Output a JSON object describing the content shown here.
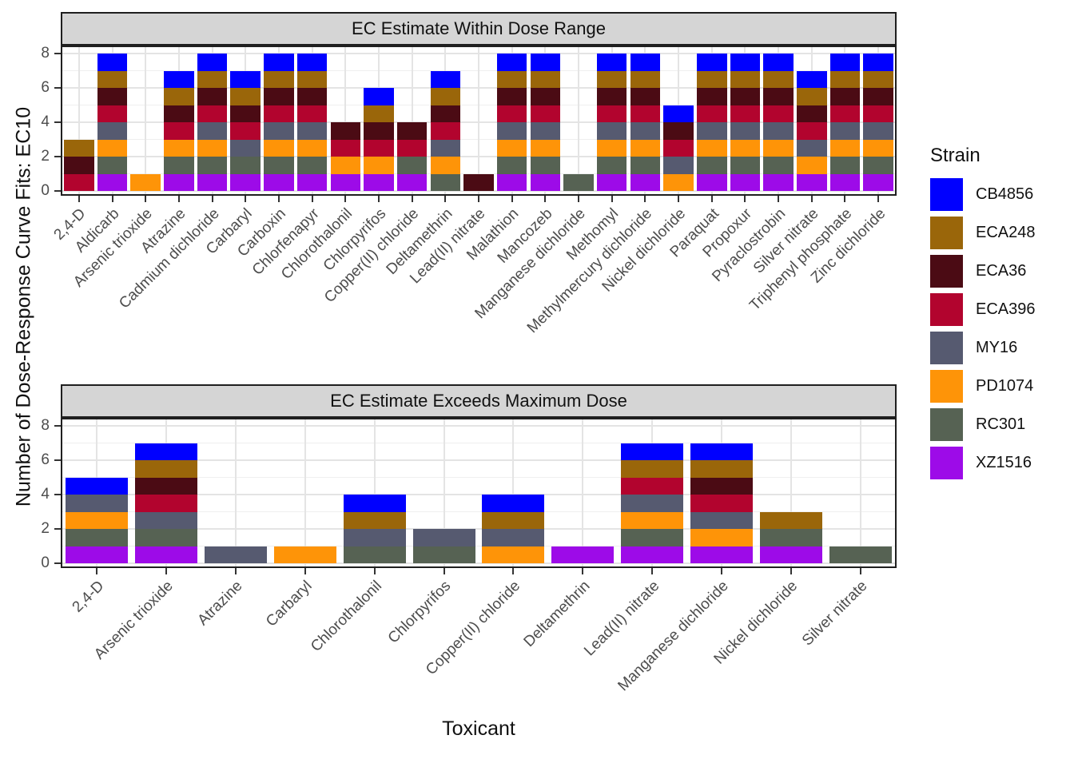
{
  "figure": {
    "ylabel": "Number of Dose-Response Curve Fits: EC10",
    "xlabel": "Toxicant"
  },
  "legend": {
    "title": "Strain",
    "entries": [
      {
        "label": "CB4856",
        "color": "#0000FF"
      },
      {
        "label": "ECA248",
        "color": "#9A660A"
      },
      {
        "label": "ECA36",
        "color": "#4B0B14"
      },
      {
        "label": "ECA396",
        "color": "#B2042E"
      },
      {
        "label": "MY16",
        "color": "#565A70"
      },
      {
        "label": "PD1074",
        "color": "#FE9408"
      },
      {
        "label": "RC301",
        "color": "#566253"
      },
      {
        "label": "XZ1516",
        "color": "#9D0BE8"
      }
    ]
  },
  "stack_order_bottom_to_top": [
    "XZ1516",
    "RC301",
    "PD1074",
    "MY16",
    "ECA396",
    "ECA36",
    "ECA248",
    "CB4856"
  ],
  "chart_data": [
    {
      "type": "bar",
      "stacked": true,
      "title": "EC Estimate Within Dose Range",
      "ylim": [
        0,
        8
      ],
      "yticks": [
        0,
        2,
        4,
        6,
        8
      ],
      "grid": true,
      "legend_position": "right",
      "unit_per_strain": 1,
      "categories": [
        "2,4-D",
        "Aldicarb",
        "Arsenic trioxide",
        "Atrazine",
        "Cadmium dichloride",
        "Carbaryl",
        "Carboxin",
        "Chlorfenapyr",
        "Chlorothalonil",
        "Chlorpyrifos",
        "Copper(II) chloride",
        "Deltamethrin",
        "Lead(II) nitrate",
        "Malathion",
        "Mancozeb",
        "Manganese dichloride",
        "Methomyl",
        "Methylmercury dichloride",
        "Nickel dichloride",
        "Paraquat",
        "Propoxur",
        "Pyraclostrobin",
        "Silver nitrate",
        "Triphenyl phosphate",
        "Zinc dichloride"
      ],
      "bars": [
        {
          "category": "2,4-D",
          "strains": [
            "ECA396",
            "ECA36",
            "ECA248"
          ],
          "total": 3
        },
        {
          "category": "Aldicarb",
          "strains": [
            "XZ1516",
            "RC301",
            "PD1074",
            "MY16",
            "ECA396",
            "ECA36",
            "ECA248",
            "CB4856"
          ],
          "total": 8
        },
        {
          "category": "Arsenic trioxide",
          "strains": [
            "PD1074"
          ],
          "total": 1
        },
        {
          "category": "Atrazine",
          "strains": [
            "XZ1516",
            "RC301",
            "PD1074",
            "ECA396",
            "ECA36",
            "ECA248",
            "CB4856"
          ],
          "total": 7
        },
        {
          "category": "Cadmium dichloride",
          "strains": [
            "XZ1516",
            "RC301",
            "PD1074",
            "MY16",
            "ECA396",
            "ECA36",
            "ECA248",
            "CB4856"
          ],
          "total": 8
        },
        {
          "category": "Carbaryl",
          "strains": [
            "XZ1516",
            "RC301",
            "MY16",
            "ECA396",
            "ECA36",
            "ECA248",
            "CB4856"
          ],
          "total": 7
        },
        {
          "category": "Carboxin",
          "strains": [
            "XZ1516",
            "RC301",
            "PD1074",
            "MY16",
            "ECA396",
            "ECA36",
            "ECA248",
            "CB4856"
          ],
          "total": 8
        },
        {
          "category": "Chlorfenapyr",
          "strains": [
            "XZ1516",
            "RC301",
            "PD1074",
            "MY16",
            "ECA396",
            "ECA36",
            "ECA248",
            "CB4856"
          ],
          "total": 8
        },
        {
          "category": "Chlorothalonil",
          "strains": [
            "XZ1516",
            "PD1074",
            "ECA396",
            "ECA36"
          ],
          "total": 4
        },
        {
          "category": "Chlorpyrifos",
          "strains": [
            "XZ1516",
            "PD1074",
            "ECA396",
            "ECA36",
            "ECA248",
            "CB4856"
          ],
          "total": 6
        },
        {
          "category": "Copper(II) chloride",
          "strains": [
            "XZ1516",
            "RC301",
            "ECA396",
            "ECA36"
          ],
          "total": 4
        },
        {
          "category": "Deltamethrin",
          "strains": [
            "RC301",
            "PD1074",
            "MY16",
            "ECA396",
            "ECA36",
            "ECA248",
            "CB4856"
          ],
          "total": 7
        },
        {
          "category": "Lead(II) nitrate",
          "strains": [
            "ECA36"
          ],
          "total": 1
        },
        {
          "category": "Malathion",
          "strains": [
            "XZ1516",
            "RC301",
            "PD1074",
            "MY16",
            "ECA396",
            "ECA36",
            "ECA248",
            "CB4856"
          ],
          "total": 8
        },
        {
          "category": "Mancozeb",
          "strains": [
            "XZ1516",
            "RC301",
            "PD1074",
            "MY16",
            "ECA396",
            "ECA36",
            "ECA248",
            "CB4856"
          ],
          "total": 8
        },
        {
          "category": "Manganese dichloride",
          "strains": [
            "RC301"
          ],
          "total": 1
        },
        {
          "category": "Methomyl",
          "strains": [
            "XZ1516",
            "RC301",
            "PD1074",
            "MY16",
            "ECA396",
            "ECA36",
            "ECA248",
            "CB4856"
          ],
          "total": 8
        },
        {
          "category": "Methylmercury dichloride",
          "strains": [
            "XZ1516",
            "RC301",
            "PD1074",
            "MY16",
            "ECA396",
            "ECA36",
            "ECA248",
            "CB4856"
          ],
          "total": 8
        },
        {
          "category": "Nickel dichloride",
          "strains": [
            "PD1074",
            "MY16",
            "ECA396",
            "ECA36",
            "CB4856"
          ],
          "total": 5
        },
        {
          "category": "Paraquat",
          "strains": [
            "XZ1516",
            "RC301",
            "PD1074",
            "MY16",
            "ECA396",
            "ECA36",
            "ECA248",
            "CB4856"
          ],
          "total": 8
        },
        {
          "category": "Propoxur",
          "strains": [
            "XZ1516",
            "RC301",
            "PD1074",
            "MY16",
            "ECA396",
            "ECA36",
            "ECA248",
            "CB4856"
          ],
          "total": 8
        },
        {
          "category": "Pyraclostrobin",
          "strains": [
            "XZ1516",
            "RC301",
            "PD1074",
            "MY16",
            "ECA396",
            "ECA36",
            "ECA248",
            "CB4856"
          ],
          "total": 8
        },
        {
          "category": "Silver nitrate",
          "strains": [
            "XZ1516",
            "PD1074",
            "MY16",
            "ECA396",
            "ECA36",
            "ECA248",
            "CB4856"
          ],
          "total": 7
        },
        {
          "category": "Triphenyl phosphate",
          "strains": [
            "XZ1516",
            "RC301",
            "PD1074",
            "MY16",
            "ECA396",
            "ECA36",
            "ECA248",
            "CB4856"
          ],
          "total": 8
        },
        {
          "category": "Zinc dichloride",
          "strains": [
            "XZ1516",
            "RC301",
            "PD1074",
            "MY16",
            "ECA396",
            "ECA36",
            "ECA248",
            "CB4856"
          ],
          "total": 8
        }
      ]
    },
    {
      "type": "bar",
      "stacked": true,
      "title": "EC Estimate Exceeds Maximum Dose",
      "ylim": [
        0,
        8
      ],
      "yticks": [
        0,
        2,
        4,
        6,
        8
      ],
      "grid": true,
      "legend_position": "right",
      "unit_per_strain": 1,
      "categories": [
        "2,4-D",
        "Arsenic trioxide",
        "Atrazine",
        "Carbaryl",
        "Chlorothalonil",
        "Chlorpyrifos",
        "Copper(II) chloride",
        "Deltamethrin",
        "Lead(II) nitrate",
        "Manganese dichloride",
        "Nickel dichloride",
        "Silver nitrate"
      ],
      "bars": [
        {
          "category": "2,4-D",
          "strains": [
            "XZ1516",
            "RC301",
            "PD1074",
            "MY16",
            "CB4856"
          ],
          "total": 5
        },
        {
          "category": "Arsenic trioxide",
          "strains": [
            "XZ1516",
            "RC301",
            "MY16",
            "ECA396",
            "ECA36",
            "ECA248",
            "CB4856"
          ],
          "total": 7
        },
        {
          "category": "Atrazine",
          "strains": [
            "MY16"
          ],
          "total": 1
        },
        {
          "category": "Carbaryl",
          "strains": [
            "PD1074"
          ],
          "total": 1
        },
        {
          "category": "Chlorothalonil",
          "strains": [
            "RC301",
            "MY16",
            "ECA248",
            "CB4856"
          ],
          "total": 4
        },
        {
          "category": "Chlorpyrifos",
          "strains": [
            "RC301",
            "MY16"
          ],
          "total": 2
        },
        {
          "category": "Copper(II) chloride",
          "strains": [
            "PD1074",
            "MY16",
            "ECA248",
            "CB4856"
          ],
          "total": 4
        },
        {
          "category": "Deltamethrin",
          "strains": [
            "XZ1516"
          ],
          "total": 1
        },
        {
          "category": "Lead(II) nitrate",
          "strains": [
            "XZ1516",
            "RC301",
            "PD1074",
            "MY16",
            "ECA396",
            "ECA248",
            "CB4856"
          ],
          "total": 7
        },
        {
          "category": "Manganese dichloride",
          "strains": [
            "XZ1516",
            "PD1074",
            "MY16",
            "ECA396",
            "ECA36",
            "ECA248",
            "CB4856"
          ],
          "total": 7
        },
        {
          "category": "Nickel dichloride",
          "strains": [
            "XZ1516",
            "RC301",
            "ECA248"
          ],
          "total": 3
        },
        {
          "category": "Silver nitrate",
          "strains": [
            "RC301"
          ],
          "total": 1
        }
      ]
    }
  ]
}
